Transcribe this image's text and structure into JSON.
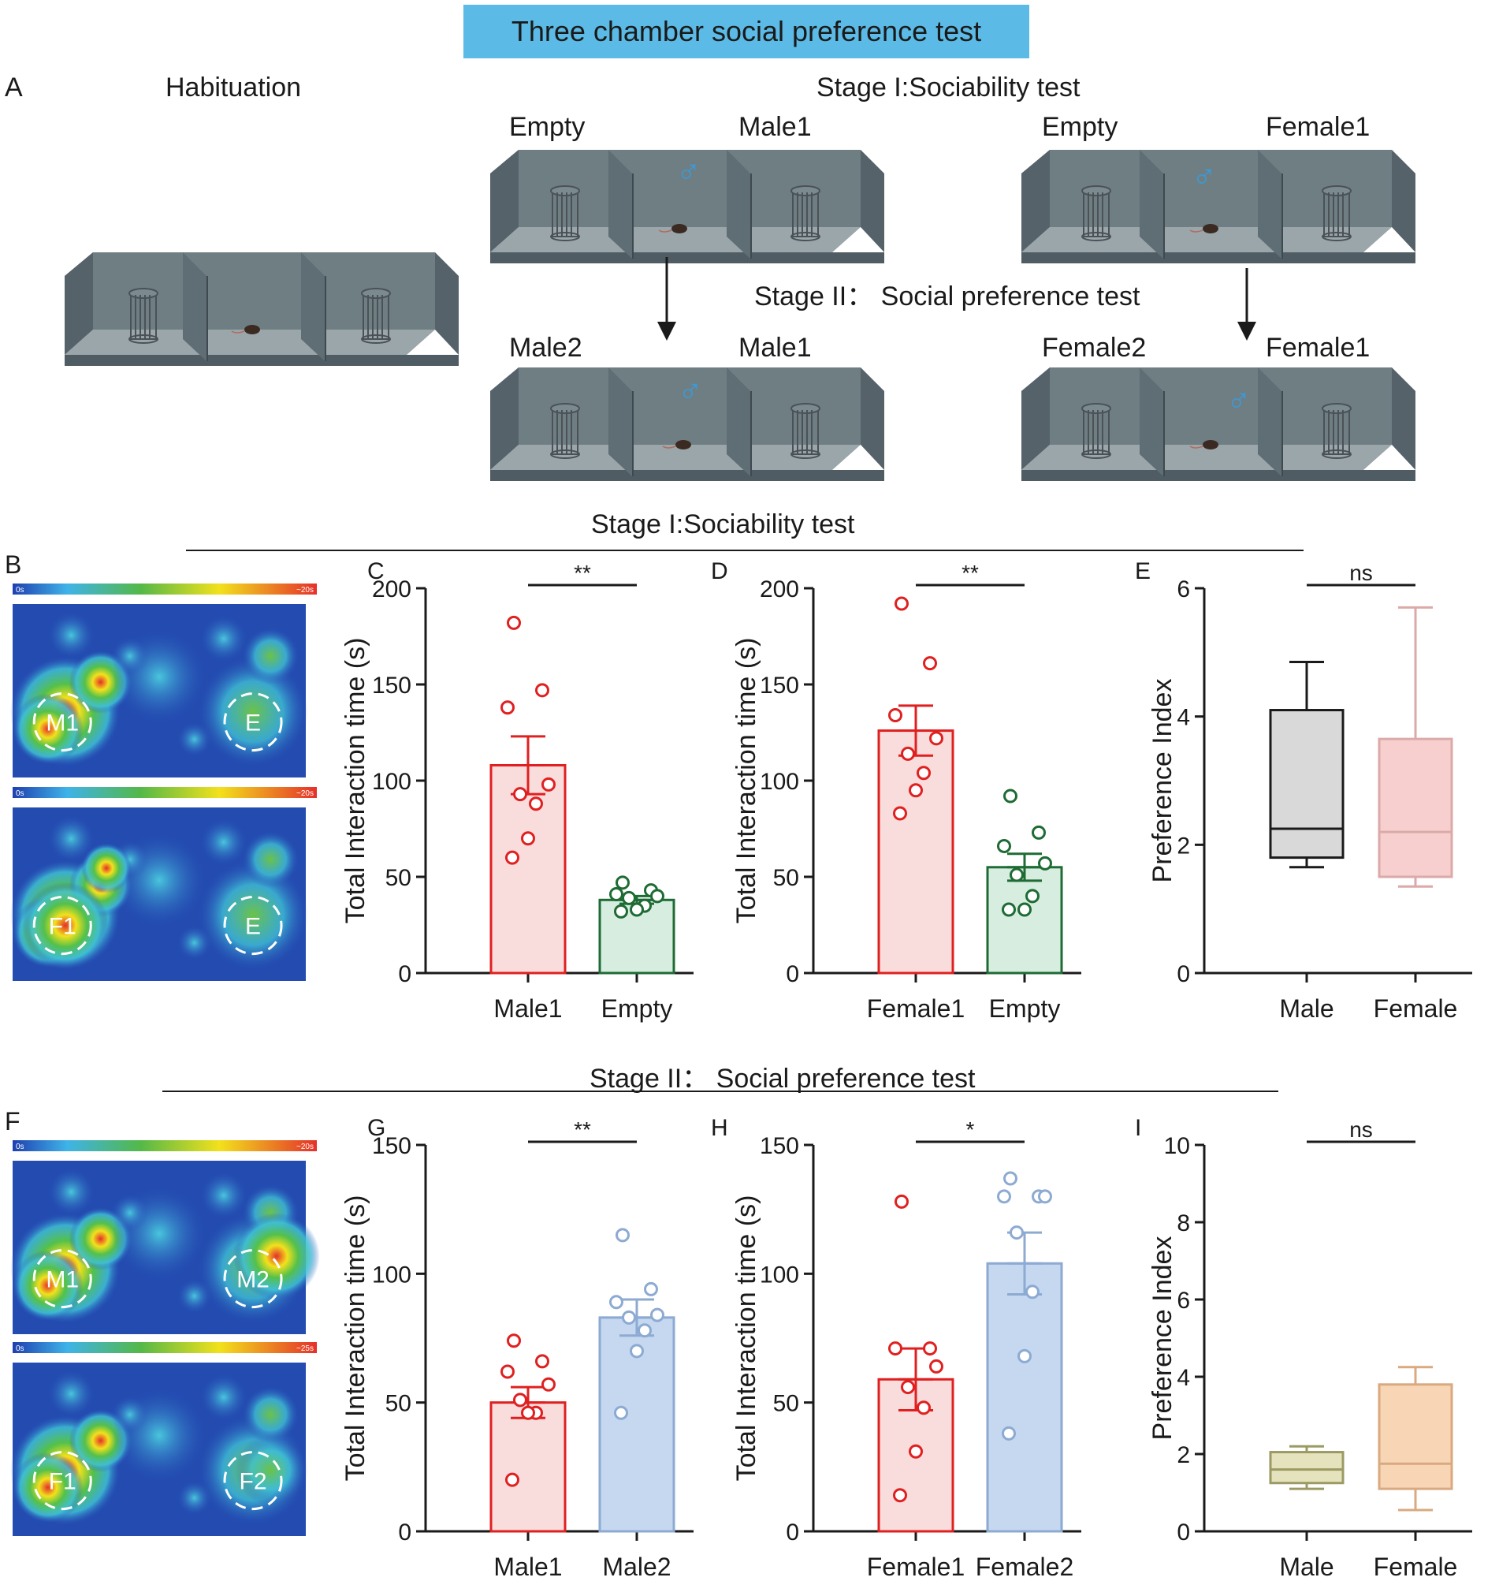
{
  "figure": {
    "title": "Three chamber social preference test",
    "panelA": {
      "label": "A",
      "habituation": "Habituation",
      "stage1": "Stage I:Sociability test",
      "stage2": "Stage II： Social preference test",
      "male_s1_left": "Empty",
      "male_s1_right": "Male1",
      "female_s1_left": "Empty",
      "female_s1_right": "Female1",
      "male_s2_left": "Male2",
      "male_s2_right": "Male1",
      "female_s2_left": "Female2",
      "female_s2_right": "Female1",
      "male_symbol": "♂"
    },
    "section1_title": "Stage I:Sociability test",
    "section2_title": "Stage II： Social preference test",
    "heatmaps": {
      "B": {
        "label": "B",
        "top_scale": [
          "0s",
          "~20s"
        ],
        "bottom_scale": [
          "0s",
          "~20s"
        ],
        "top_zones": [
          "M1",
          "E"
        ],
        "bottom_zones": [
          "F1",
          "E"
        ]
      },
      "F": {
        "label": "F",
        "top_scale": [
          "0s",
          "~20s"
        ],
        "bottom_scale": [
          "0s",
          "~25s"
        ],
        "top_zones": [
          "M1",
          "M2"
        ],
        "bottom_zones": [
          "F1",
          "F2"
        ]
      }
    },
    "colors": {
      "red": "#e02020",
      "pinkfill": "#f9dcdc",
      "green": "#1e6b34",
      "greenfill": "#d6ede0",
      "blue": "#8caad2",
      "bluefill": "#c5d8f0",
      "gray": "#d9d9d9",
      "pink": "#dbaaa8",
      "pinkbox": "#f7cfcf",
      "olive": "#9b9a63",
      "olivefill": "#e5e3bd",
      "orange": "#d9a980",
      "orangefill": "#f8d5b5",
      "accent": "#5bbbe6",
      "icon": "#3a9ad9"
    }
  },
  "chart_data": [
    {
      "id": "C",
      "type": "bar",
      "panel_label": "C",
      "ylabel": "Total Interaction time (s)",
      "ylim": [
        0,
        200
      ],
      "yticks": [
        0,
        50,
        100,
        150,
        200
      ],
      "sig": "**",
      "categories": [
        "Male1",
        "Empty"
      ],
      "means": [
        108,
        38
      ],
      "sem": [
        15,
        2
      ],
      "points": [
        [
          182,
          147,
          138,
          98,
          93,
          88,
          70,
          60
        ],
        [
          47,
          43,
          41,
          40,
          39,
          35,
          33,
          32
        ]
      ],
      "colors": [
        "red",
        "green"
      ]
    },
    {
      "id": "D",
      "type": "bar",
      "panel_label": "D",
      "ylabel": "Total Interaction time (s)",
      "ylim": [
        0,
        200
      ],
      "yticks": [
        0,
        50,
        100,
        150,
        200
      ],
      "sig": "**",
      "categories": [
        "Female1",
        "Empty"
      ],
      "means": [
        126,
        55
      ],
      "sem": [
        13,
        7
      ],
      "points": [
        [
          192,
          161,
          134,
          122,
          114,
          104,
          95,
          83
        ],
        [
          92,
          73,
          66,
          57,
          51,
          40,
          33,
          33
        ]
      ],
      "colors": [
        "red",
        "green"
      ]
    },
    {
      "id": "E",
      "type": "box",
      "panel_label": "E",
      "ylabel": "Preference Index",
      "ylim": [
        0,
        6
      ],
      "yticks": [
        0,
        2,
        4,
        6
      ],
      "sig": "ns",
      "categories": [
        "Male",
        "Female"
      ],
      "boxes": [
        {
          "min": 1.65,
          "q1": 1.8,
          "median": 2.25,
          "q3": 4.1,
          "max": 4.85
        },
        {
          "min": 1.35,
          "q1": 1.5,
          "median": 2.2,
          "q3": 3.65,
          "max": 5.7
        }
      ],
      "colors": [
        "gray",
        "pink"
      ]
    },
    {
      "id": "G",
      "type": "bar",
      "panel_label": "G",
      "ylabel": "Total Interaction time (s)",
      "ylim": [
        0,
        150
      ],
      "yticks": [
        0,
        50,
        100,
        150
      ],
      "sig": "**",
      "categories": [
        "Male1",
        "Male2"
      ],
      "means": [
        50,
        83
      ],
      "sem": [
        6,
        7
      ],
      "points": [
        [
          74,
          66,
          62,
          57,
          51,
          46,
          46,
          20
        ],
        [
          115,
          94,
          89,
          84,
          83,
          78,
          70,
          46
        ]
      ],
      "colors": [
        "red",
        "blue"
      ]
    },
    {
      "id": "H",
      "type": "bar",
      "panel_label": "H",
      "ylabel": "Total Interaction time (s)",
      "ylim": [
        0,
        150
      ],
      "yticks": [
        0,
        50,
        100,
        150
      ],
      "sig": "*",
      "categories": [
        "Female1",
        "Female2"
      ],
      "means": [
        59,
        104
      ],
      "sem": [
        12,
        12
      ],
      "points": [
        [
          128,
          71,
          71,
          64,
          56,
          48,
          31,
          14
        ],
        [
          137,
          130,
          130,
          130,
          116,
          93,
          68,
          38
        ]
      ],
      "colors": [
        "red",
        "blue"
      ]
    },
    {
      "id": "I",
      "type": "box",
      "panel_label": "I",
      "ylabel": "Preference Index",
      "ylim": [
        0,
        10
      ],
      "yticks": [
        0,
        2,
        4,
        6,
        8,
        10
      ],
      "sig": "ns",
      "categories": [
        "Male",
        "Female"
      ],
      "boxes": [
        {
          "min": 1.1,
          "q1": 1.25,
          "median": 1.6,
          "q3": 2.05,
          "max": 2.2
        },
        {
          "min": 0.55,
          "q1": 1.1,
          "median": 1.75,
          "q3": 3.8,
          "max": 4.25
        }
      ],
      "colors": [
        "olive",
        "orange"
      ]
    }
  ]
}
